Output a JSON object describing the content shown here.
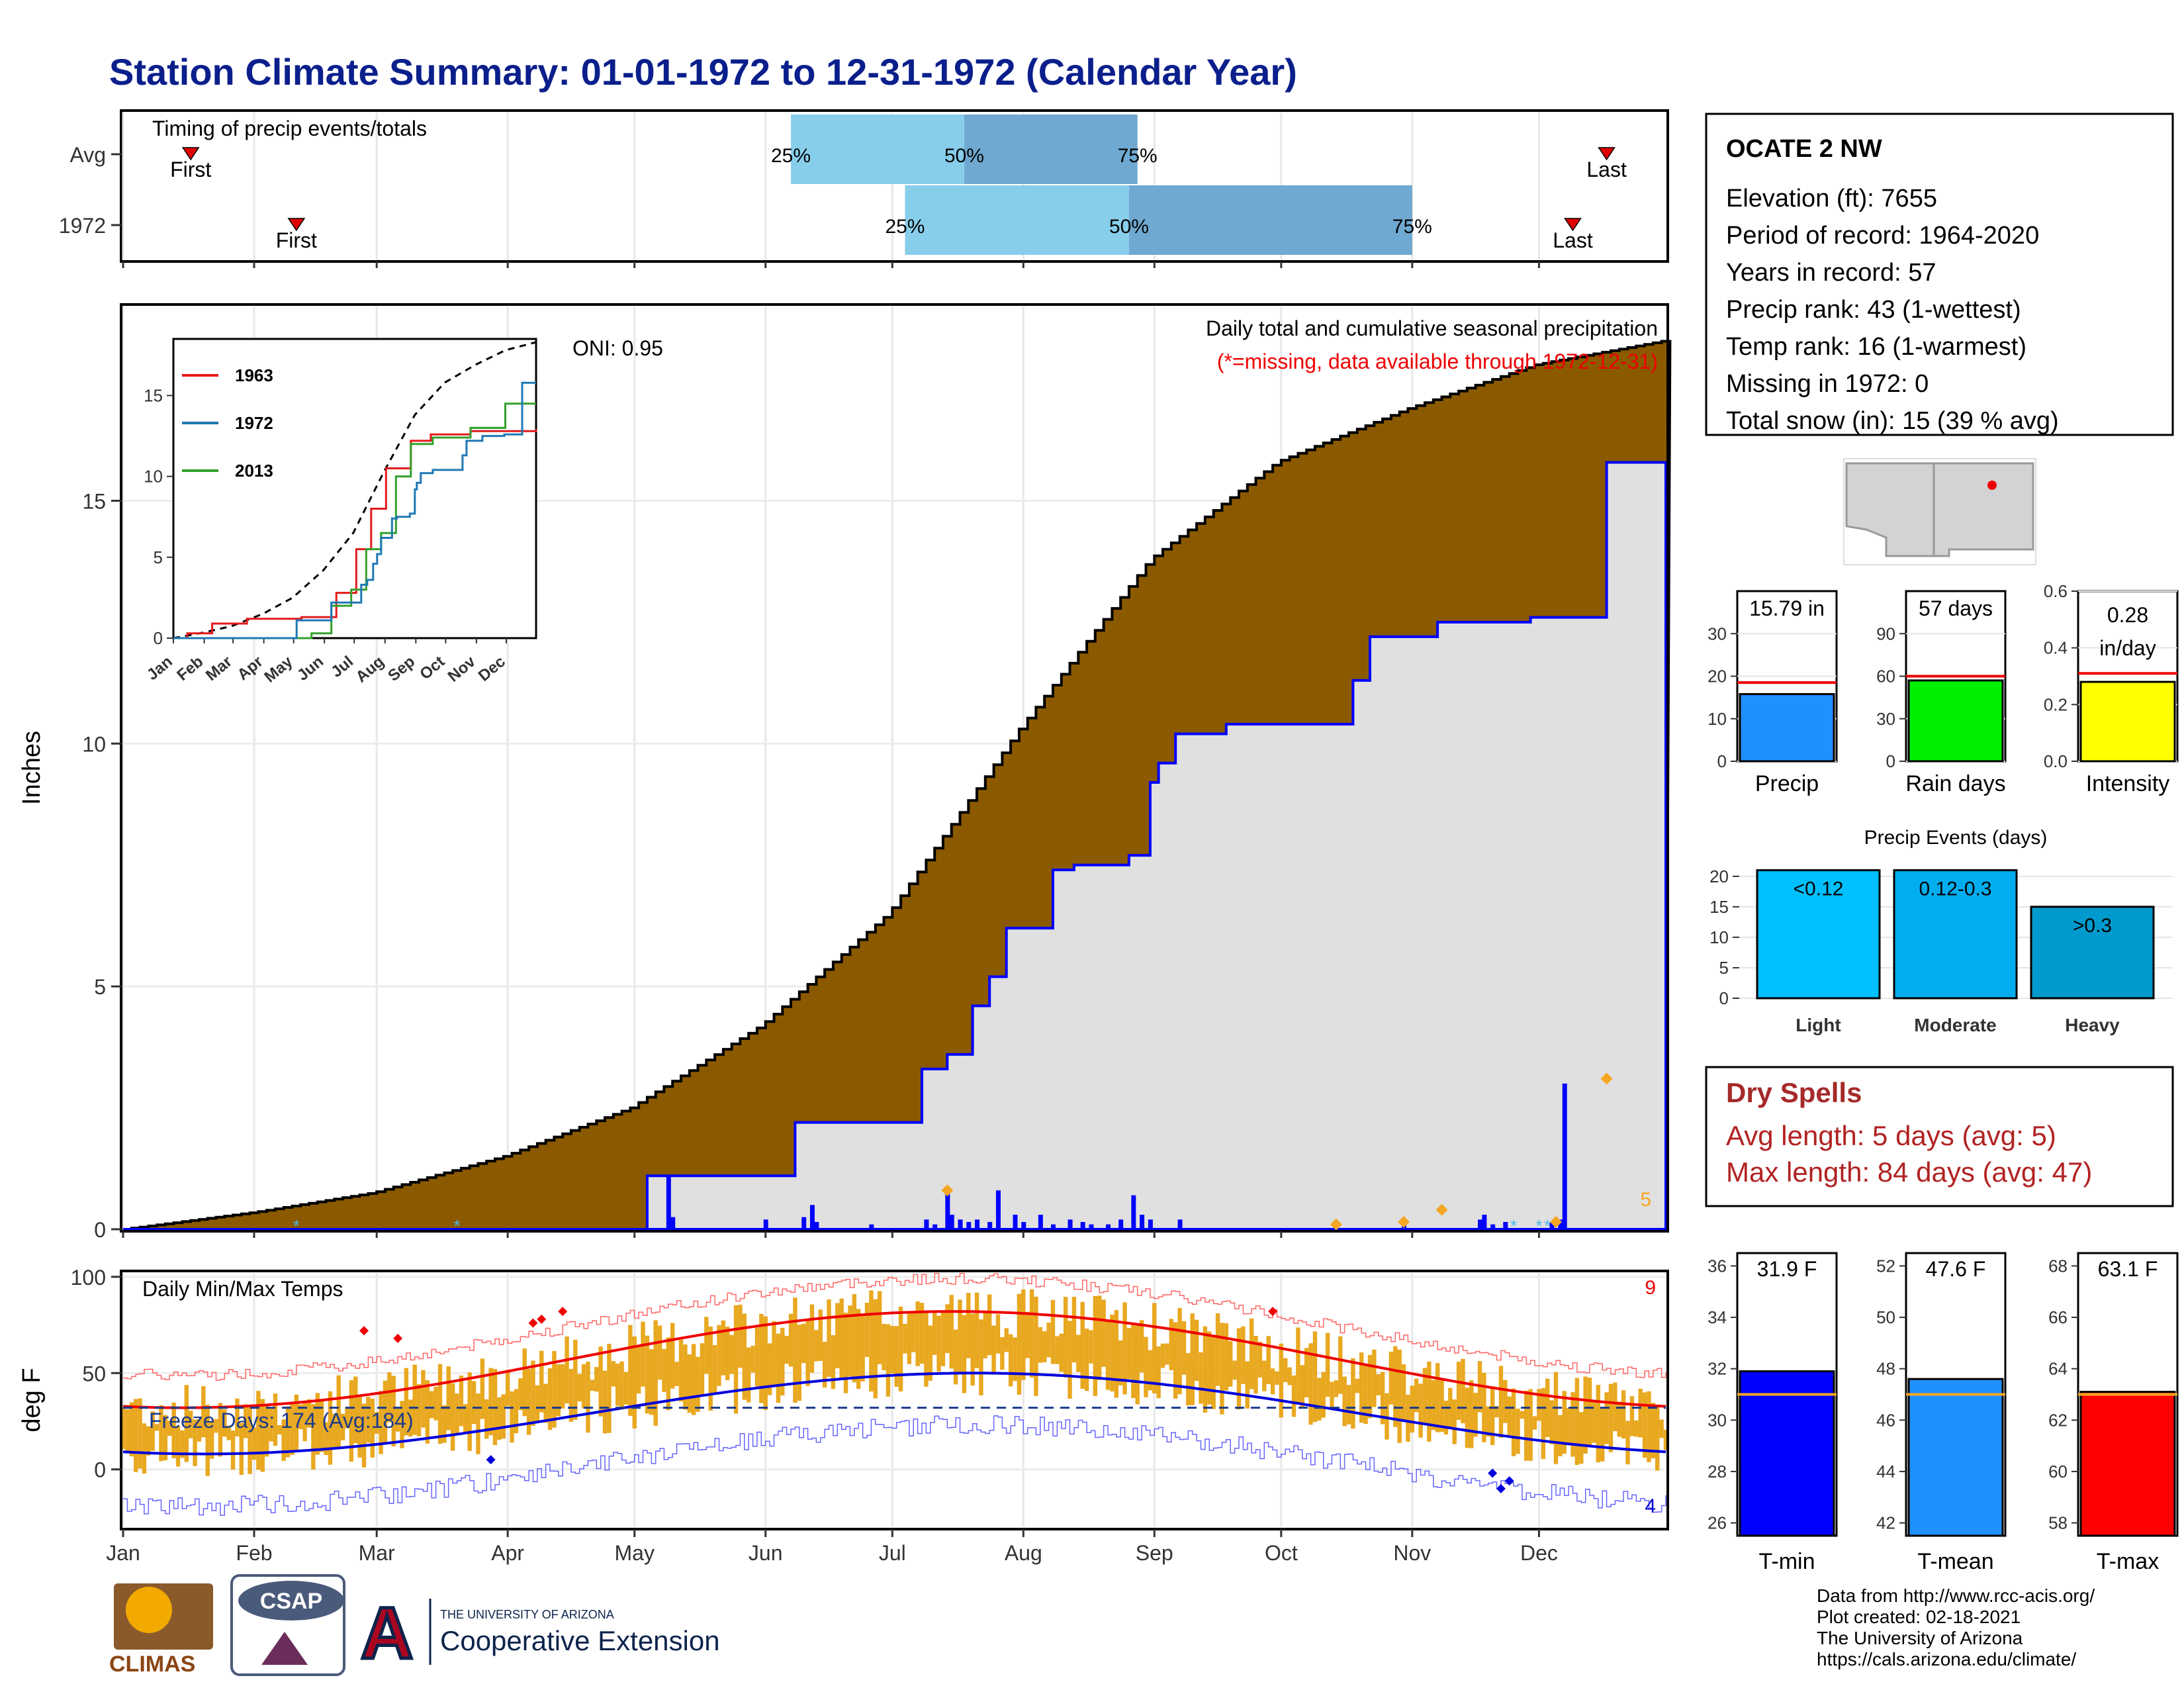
{
  "title": "Station Climate Summary: 01-01-1972 to 12-31-1972 (Calendar Year)",
  "timing": {
    "label": "Timing of precip events/totals",
    "rows": [
      {
        "name": "Avg",
        "first_label": "First",
        "last_label": "Last",
        "first_doy": 17,
        "last_doy": 352,
        "p25_doy": 159,
        "p50_doy": 200,
        "p75_doy": 241
      },
      {
        "name": "1972",
        "first_label": "First",
        "last_label": "Last",
        "first_doy": 42,
        "last_doy": 344,
        "p25_doy": 186,
        "p50_doy": 239,
        "p75_doy": 306
      }
    ],
    "pct_labels": [
      "25%",
      "50%",
      "75%"
    ]
  },
  "months": [
    "Jan",
    "Feb",
    "Mar",
    "Apr",
    "May",
    "Jun",
    "Jul",
    "Aug",
    "Sep",
    "Oct",
    "Nov",
    "Dec"
  ],
  "precip_panel": {
    "title": "Daily total and cumulative seasonal precipitation",
    "subtitle": "(*=missing, data available through 1972-12-31)",
    "oni": "ONI: 0.95",
    "ylabel": "Inches",
    "yticks": [
      0,
      5,
      10,
      15
    ],
    "corner_count": "5"
  },
  "inset": {
    "yticks": [
      0,
      5,
      10,
      15
    ],
    "months": [
      "Jan",
      "Feb",
      "Mar",
      "Apr",
      "May",
      "Jun",
      "Jul",
      "Aug",
      "Sep",
      "Oct",
      "Nov",
      "Dec"
    ],
    "legend": [
      {
        "name": "1963",
        "color": "#e31a1c"
      },
      {
        "name": "1972",
        "color": "#1f78b4"
      },
      {
        "name": "2013",
        "color": "#33a02c"
      }
    ]
  },
  "temp_panel": {
    "title": "Daily Min/Max Temps",
    "ylabel": "deg F",
    "yticks": [
      0,
      50,
      100
    ],
    "freeze_text": "Freeze Days: 174 (Avg:184)",
    "count_hot": "9",
    "count_cold": "4"
  },
  "station": {
    "name": "OCATE 2 NW",
    "lines": [
      "Elevation (ft): 7655",
      "Period of record: 1964-2020",
      "Years in record: 57",
      "Precip rank: 43 (1-wettest)",
      "Temp rank: 16 (1-warmest)",
      "Missing in 1972: 0",
      "Total snow (in): 15 (39 % avg)"
    ]
  },
  "mini_bars": [
    {
      "label": "Precip",
      "value_label": "15.79 in",
      "value": 15.79,
      "avg": 18.5,
      "ymax": 40,
      "yticks": [
        0,
        10,
        20,
        30
      ],
      "color": "#1e90ff"
    },
    {
      "label": "Rain days",
      "value_label": "57 days",
      "value": 57,
      "avg": 60,
      "ymax": 120,
      "yticks": [
        0,
        30,
        60,
        90
      ],
      "color": "#00ee00"
    },
    {
      "label": "Intensity",
      "value_label": "0.28 in/day",
      "value": 0.28,
      "avg": 0.31,
      "ymax": 0.6,
      "yticks": [
        "0.0",
        "0.2",
        "0.4",
        "0.6"
      ],
      "color": "#ffff00"
    }
  ],
  "precip_events": {
    "title": "Precip Events (days)",
    "yticks": [
      0,
      5,
      10,
      15,
      20
    ],
    "bars": [
      {
        "label": "Light",
        "range": "<0.12",
        "value": 21,
        "color": "#00bfff"
      },
      {
        "label": "Moderate",
        "range": "0.12-0.3",
        "value": 21,
        "color": "#00aeef"
      },
      {
        "label": "Heavy",
        "range": ">0.3",
        "value": 15,
        "color": "#009acd"
      }
    ]
  },
  "dry_spells": {
    "title": "Dry Spells",
    "avg_line": "Avg length: 5 days (avg: 5)",
    "max_line": "Max length: 84 days (avg: 47)"
  },
  "temp_bars": [
    {
      "label": "T-min",
      "value_label": "31.9 F",
      "value": 31.9,
      "avg": 31.0,
      "ymin": 25.5,
      "ymax": 36.5,
      "yticks": [
        26,
        28,
        30,
        32,
        34,
        36
      ],
      "color": "#0000ff"
    },
    {
      "label": "T-mean",
      "value_label": "47.6 F",
      "value": 47.6,
      "avg": 47.0,
      "ymin": 41.5,
      "ymax": 52.5,
      "yticks": [
        42,
        44,
        46,
        48,
        50,
        52
      ],
      "color": "#1e90ff"
    },
    {
      "label": "T-max",
      "value_label": "63.1 F",
      "value": 63.1,
      "avg": 63.0,
      "ymin": 57.5,
      "ymax": 68.5,
      "yticks": [
        58,
        60,
        62,
        64,
        66,
        68
      ],
      "color": "#ff0000"
    }
  ],
  "footer": {
    "lines": [
      "Data from http://www.rcc-acis.org/",
      "Plot created: 02-18-2021",
      "The University of Arizona",
      "https://cals.arizona.edu/climate/"
    ],
    "logo_climas": "CLIMAS",
    "logo_csap": "CSAP",
    "ua_small": "THE UNIVERSITY OF ARIZONA",
    "ua_big": "Cooperative Extension"
  },
  "chart_data": {
    "type": "area",
    "title": "Daily total and cumulative seasonal precipitation",
    "ylabel": "Inches",
    "ylim": [
      0,
      19
    ],
    "x_unit": "day of year",
    "cumulative_1972": {
      "x": [
        1,
        105,
        125,
        150,
        160,
        185,
        190,
        196,
        200,
        202,
        206,
        210,
        221,
        226,
        239,
        244,
        246,
        250,
        262,
        288,
        292,
        296,
        312,
        334,
        352,
        366
      ],
      "y": [
        0,
        0,
        1.1,
        1.1,
        2.2,
        2.2,
        3.3,
        3.6,
        3.6,
        4.6,
        5.2,
        6.2,
        7.4,
        7.5,
        7.7,
        9.2,
        9.6,
        10.2,
        10.4,
        10.4,
        11.3,
        12.2,
        12.5,
        12.6,
        15.79,
        15.79
      ]
    },
    "cumulative_avg": {
      "x": [
        1,
        32,
        60,
        91,
        121,
        152,
        182,
        213,
        244,
        274,
        305,
        335,
        366
      ],
      "y": [
        0,
        0.35,
        0.75,
        1.5,
        2.5,
        4.2,
        6.5,
        10.3,
        13.8,
        15.8,
        16.9,
        17.8,
        18.3
      ]
    },
    "daily_precip": {
      "x": [
        130,
        131,
        153,
        162,
        164,
        165,
        178,
        191,
        193,
        196,
        197,
        199,
        201,
        203,
        206,
        208,
        212,
        214,
        218,
        221,
        225,
        228,
        230,
        234,
        237,
        240,
        242,
        244,
        251,
        304,
        322,
        323,
        325,
        328,
        339,
        341,
        342
      ],
      "y": [
        1.1,
        0.25,
        0.2,
        0.25,
        0.5,
        0.15,
        0.1,
        0.2,
        0.1,
        0.8,
        0.3,
        0.2,
        0.15,
        0.2,
        0.15,
        0.8,
        0.3,
        0.15,
        0.3,
        0.1,
        0.2,
        0.15,
        0.1,
        0.1,
        0.2,
        0.7,
        0.3,
        0.2,
        0.2,
        0.15,
        0.2,
        0.3,
        0.1,
        0.15,
        0.15,
        0.2,
        3.0
      ]
    }
  }
}
